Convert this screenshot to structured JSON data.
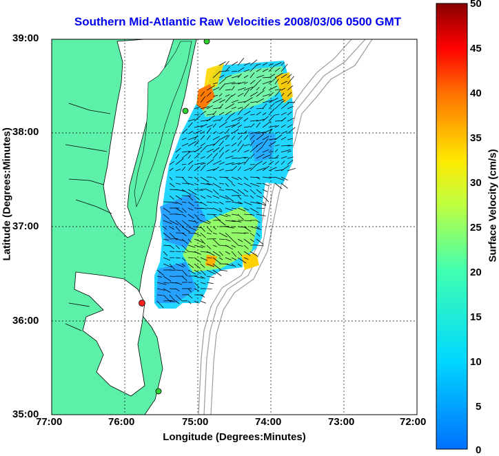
{
  "title": "Southern Mid-Atlantic Raw Velocities 2008/03/06 0500 GMT",
  "x_axis": {
    "label": "Longitude (Degrees:Minutes)",
    "ticks": [
      "77:00",
      "76:00",
      "75:00",
      "74:00",
      "73:00",
      "72:00"
    ]
  },
  "y_axis": {
    "label": "Latitude (Degrees:Minutes)",
    "ticks": [
      "39:00",
      "38:00",
      "37:00",
      "36:00",
      "35:00"
    ]
  },
  "colorbar": {
    "label": "Surface Velocity (cm/s)",
    "ticks": [
      "50",
      "45",
      "40",
      "35",
      "30",
      "25",
      "20",
      "15",
      "10",
      "5",
      "0"
    ],
    "min": 0,
    "max": 50
  },
  "colors": {
    "land": "#5cf0a8",
    "title": "#0000ee",
    "bathymetry": "#9a9a9a",
    "grid": "#000000"
  },
  "chart_data": {
    "type": "heatmap",
    "title": "Southern Mid-Atlantic Raw Velocities 2008/03/06 0500 GMT",
    "xlabel": "Longitude (Degrees:Minutes)",
    "ylabel": "Latitude (Degrees:Minutes)",
    "xlim": [
      -77,
      -72
    ],
    "ylim": [
      35,
      39
    ],
    "colorbar_range": [
      0,
      50
    ],
    "colorbar_label": "Surface Velocity (cm/s)",
    "grid": true,
    "stations": [
      {
        "lon": -74.88,
        "lat": 38.98,
        "color": "green"
      },
      {
        "lon": -75.15,
        "lat": 38.23,
        "color": "green"
      },
      {
        "lon": -75.75,
        "lat": 36.18,
        "color": "red"
      },
      {
        "lon": -75.52,
        "lat": 35.25,
        "color": "green"
      }
    ]
  }
}
